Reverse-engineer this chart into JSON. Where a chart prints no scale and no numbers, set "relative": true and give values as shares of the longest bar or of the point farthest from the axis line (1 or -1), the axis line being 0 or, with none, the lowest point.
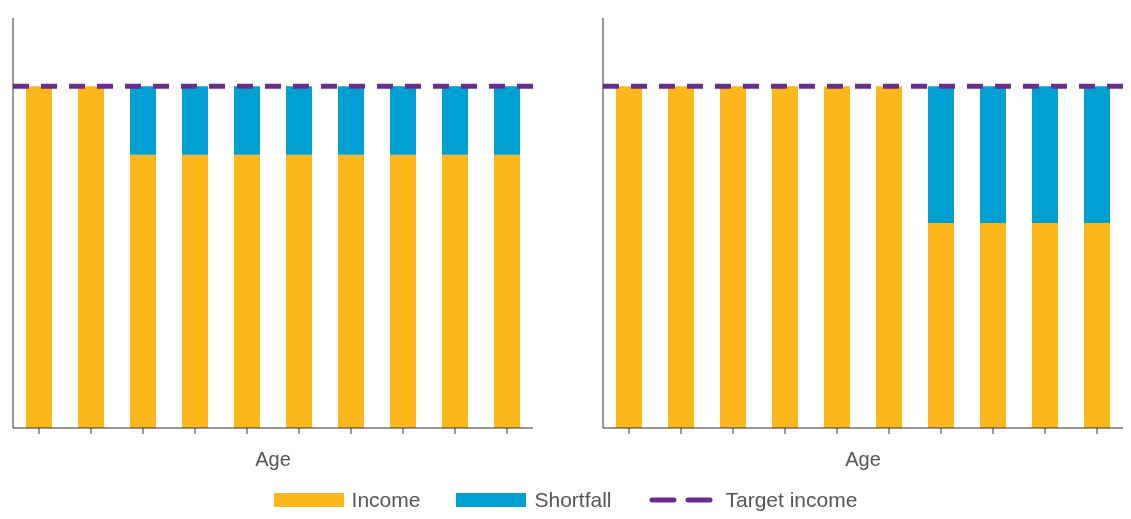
{
  "chart_data": [
    {
      "type": "bar",
      "stacked": true,
      "relative": true,
      "xlabel": "Age",
      "categories": [
        null,
        null,
        null,
        null,
        null,
        null,
        null,
        null,
        null,
        null
      ],
      "legend": "bottom",
      "series": [
        {
          "name": "Income",
          "color": "#fdb71a",
          "values": [
            1,
            1,
            0.8,
            0.8,
            0.8,
            0.8,
            0.8,
            0.8,
            0.8,
            0.8
          ]
        },
        {
          "name": "Shortfall",
          "color": "#00a0d2",
          "values": [
            null,
            null,
            0.2,
            0.2,
            0.2,
            0.2,
            0.2,
            0.2,
            0.2,
            0.2
          ]
        }
      ],
      "ref_lines": [
        {
          "axis": "y",
          "value": 1,
          "label": "Target income",
          "color": "#6b2c8f",
          "line_style": "dashed"
        }
      ]
    },
    {
      "type": "bar",
      "stacked": true,
      "relative": true,
      "xlabel": "Age",
      "categories": [
        null,
        null,
        null,
        null,
        null,
        null,
        null,
        null,
        null,
        null
      ],
      "series": [
        {
          "color": "#fdb71a",
          "values": [
            1,
            1,
            1,
            1,
            1,
            1,
            0.6,
            0.6,
            0.6,
            0.6
          ]
        },
        {
          "color": "#00a0d2",
          "values": [
            null,
            null,
            null,
            null,
            null,
            null,
            0.4,
            0.4,
            0.4,
            0.4
          ]
        }
      ],
      "ref_lines": [
        {
          "axis": "y",
          "value": 1,
          "color": "#6b2c8f",
          "line_style": "dashed"
        }
      ]
    }
  ]
}
